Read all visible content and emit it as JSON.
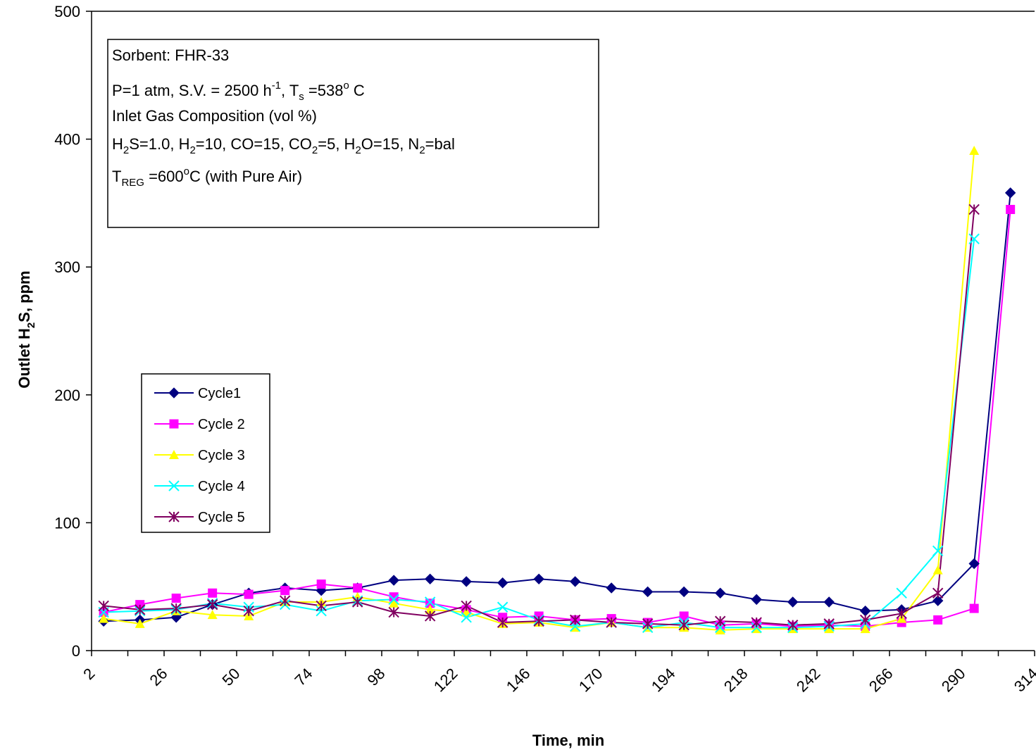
{
  "chart_data": {
    "type": "line",
    "xlabel": "Time, min",
    "ylabel_parts": [
      "Outlet H",
      "2",
      "S, ppm"
    ],
    "x_ticks": [
      2,
      26,
      50,
      74,
      98,
      122,
      146,
      170,
      194,
      218,
      242,
      266,
      290,
      314
    ],
    "y_ticks": [
      0,
      100,
      200,
      300,
      400,
      500
    ],
    "xlim": [
      2,
      314
    ],
    "ylim": [
      0,
      500
    ],
    "legend_position": "left-center",
    "info_box": {
      "line1": "Sorbent: FHR-33",
      "line2": {
        "a": "P=1 atm,  S.V. = 2500 h",
        "sup1": "-1",
        "b": ", T",
        "sub1": "s",
        "c": " =538",
        "sup2": "o",
        "d": " C"
      },
      "line3": "Inlet Gas Composition (vol %)",
      "line4": {
        "a": "H",
        "s1": "2",
        "b": "S=1.0, H",
        "s2": "2",
        "c": "=10, CO=15, CO",
        "s3": "2",
        "d": "=5, H",
        "s4": "2",
        "e": "O=15, N",
        "s5": "2",
        "f": "=bal"
      },
      "line5": {
        "a": "T",
        "sub": "REG",
        "b": " =600",
        "sup": "o",
        "c": "C (with Pure Air)"
      }
    },
    "series": [
      {
        "name": "Cycle1",
        "color": "#000080",
        "marker": "diamond",
        "x": [
          6,
          18,
          30,
          42,
          54,
          66,
          78,
          90,
          102,
          114,
          126,
          138,
          150,
          162,
          174,
          186,
          198,
          210,
          222,
          234,
          246,
          258,
          270,
          282,
          294,
          306
        ],
        "y": [
          23,
          24,
          26,
          36,
          45,
          49,
          47,
          49,
          55,
          56,
          54,
          53,
          56,
          54,
          49,
          46,
          46,
          45,
          40,
          38,
          38,
          31,
          32,
          39,
          68,
          358
        ]
      },
      {
        "name": "Cycle 2",
        "color": "#FF00FF",
        "marker": "square",
        "x": [
          6,
          18,
          30,
          42,
          54,
          66,
          78,
          90,
          102,
          114,
          126,
          138,
          150,
          162,
          174,
          186,
          198,
          210,
          222,
          234,
          246,
          258,
          270,
          282,
          294,
          306
        ],
        "y": [
          30,
          36,
          41,
          45,
          44,
          47,
          52,
          49,
          42,
          37,
          32,
          26,
          27,
          24,
          25,
          22,
          27,
          20,
          21,
          19,
          20,
          19,
          22,
          24,
          33,
          345
        ]
      },
      {
        "name": "Cycle 3",
        "color": "#FFFF00",
        "marker": "triangle",
        "x": [
          6,
          18,
          30,
          42,
          54,
          66,
          78,
          90,
          102,
          114,
          126,
          138,
          150,
          162,
          174,
          186,
          198,
          210,
          222,
          234,
          246,
          258,
          270,
          282,
          294
        ],
        "y": [
          25,
          21,
          31,
          28,
          27,
          38,
          38,
          42,
          37,
          32,
          30,
          21,
          22,
          18,
          22,
          18,
          18,
          16,
          17,
          17,
          17,
          17,
          25,
          63,
          391
        ]
      },
      {
        "name": "Cycle 4",
        "color": "#00FFFF",
        "marker": "x",
        "x": [
          6,
          18,
          30,
          42,
          54,
          66,
          78,
          90,
          102,
          114,
          126,
          138,
          150,
          162,
          174,
          186,
          198,
          210,
          222,
          234,
          246,
          258,
          270,
          282,
          294
        ],
        "y": [
          30,
          31,
          32,
          37,
          34,
          36,
          31,
          39,
          40,
          38,
          26,
          34,
          24,
          19,
          22,
          18,
          22,
          18,
          18,
          18,
          19,
          21,
          45,
          78,
          322
        ]
      },
      {
        "name": "Cycle 5",
        "color": "#800060",
        "marker": "star",
        "x": [
          6,
          18,
          30,
          42,
          54,
          66,
          78,
          90,
          102,
          114,
          126,
          138,
          150,
          162,
          174,
          186,
          198,
          210,
          222,
          234,
          246,
          258,
          270,
          282,
          294
        ],
        "y": [
          35,
          32,
          33,
          36,
          31,
          39,
          35,
          38,
          30,
          27,
          35,
          22,
          23,
          24,
          22,
          21,
          20,
          23,
          22,
          20,
          21,
          24,
          29,
          45,
          345
        ]
      }
    ]
  }
}
